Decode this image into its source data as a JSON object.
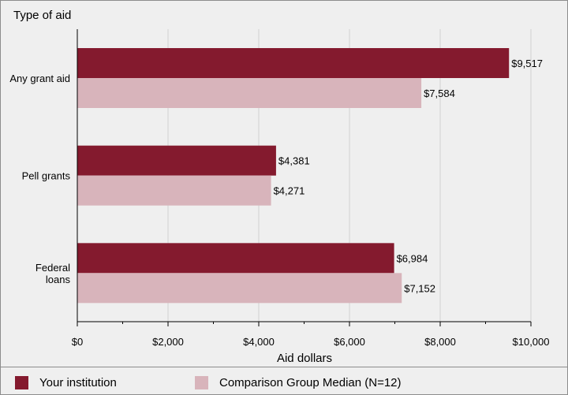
{
  "chart_data": {
    "type": "bar",
    "orientation": "horizontal",
    "ylabel": "Type of aid",
    "xlabel": "Aid dollars",
    "categories": [
      "Any grant aid",
      "Pell grants",
      "Federal loans"
    ],
    "category_lines": [
      [
        "Any grant aid"
      ],
      [
        "Pell grants"
      ],
      [
        "Federal",
        "loans"
      ]
    ],
    "series": [
      {
        "name": "Your institution",
        "values": [
          9517,
          4381,
          6984
        ],
        "labels": [
          "$9,517",
          "$4,381",
          "$6,984"
        ],
        "color": "#841a2e"
      },
      {
        "name": "Comparison Group Median (N=12)",
        "values": [
          7584,
          4271,
          7152
        ],
        "labels": [
          "$7,584",
          "$4,271",
          "$7,152"
        ],
        "color": "#d8b4bb"
      }
    ],
    "xlim": [
      0,
      10000
    ],
    "xticks": [
      0,
      2000,
      4000,
      6000,
      8000,
      10000
    ],
    "xtick_labels": [
      "$0",
      "$2,000",
      "$4,000",
      "$6,000",
      "$8,000",
      "$10,000"
    ],
    "grid": true,
    "legend_position": "bottom"
  }
}
